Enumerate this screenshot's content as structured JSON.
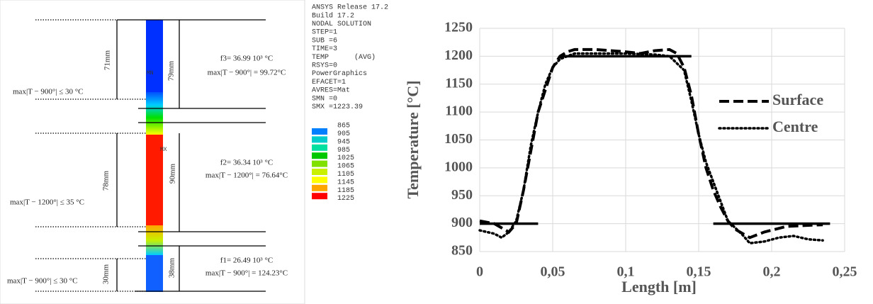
{
  "simulation": {
    "info": [
      "ANSYS Release 17.2",
      "Build 17.2",
      "NODAL SOLUTION",
      "STEP=1",
      "SUB =6",
      "TIME=3",
      "TEMP      (AVG)",
      "RSYS=0",
      "PowerGraphics",
      "EFACET=1",
      "AVRES=Mat",
      "SMN =0",
      "SMX =1223.39"
    ],
    "scale": {
      "values": [
        865,
        905,
        945,
        985,
        1025,
        1065,
        1105,
        1145,
        1185,
        1225
      ],
      "colors": [
        "#0000ff",
        "#0080ff",
        "#00cccc",
        "#00e0a0",
        "#00c800",
        "#80e000",
        "#c8f000",
        "#ffff00",
        "#ffa500",
        "#ff0000"
      ]
    },
    "zones": [
      {
        "length": "71mm",
        "section": "79mm",
        "frequency": "f3= 36.99 10³ °C",
        "deviation": "max|T − 900°| = 99.72°C",
        "limit": "max|T − 900°| ≤ 30 °C"
      },
      {
        "length": "78mm",
        "section": "90mm",
        "frequency": "f2= 36.34 10³ °C",
        "deviation": "max|T − 1200°| = 76.64°C",
        "limit": "max|T − 1200°| ≤ 35 °C"
      },
      {
        "length": "30mm",
        "section": "38mm",
        "frequency": "f1= 26.49 10³ °C",
        "deviation": "max|T − 900°| = 124.23°C",
        "limit": "max|T − 900°| ≤ 30 °C"
      }
    ],
    "markers": [
      "MN",
      "MX"
    ]
  },
  "chart_data": {
    "type": "line",
    "xlabel": "Length [m]",
    "ylabel": "Temperature [°C]",
    "xlim": [
      0,
      0.25
    ],
    "ylim": [
      850,
      1250
    ],
    "xticks": [
      0,
      {
        "value": 0.05,
        "label": "0,05"
      },
      {
        "value": 0.1,
        "label": "0,1"
      },
      {
        "value": 0.15,
        "label": "0,15"
      },
      {
        "value": 0.2,
        "label": "0,2"
      },
      {
        "value": 0.25,
        "label": "0,25"
      }
    ],
    "yticks": [
      850,
      900,
      950,
      1000,
      1050,
      1100,
      1150,
      1200,
      1250
    ],
    "grid": true,
    "legend": "right",
    "series": [
      {
        "name": "Surface",
        "color": "#000000",
        "style": "dashed",
        "x": [
          0,
          0.01,
          0.02,
          0.025,
          0.03,
          0.035,
          0.04,
          0.045,
          0.05,
          0.055,
          0.06,
          0.065,
          0.08,
          0.1,
          0.11,
          0.12,
          0.13,
          0.135,
          0.14,
          0.145,
          0.15,
          0.155,
          0.16,
          0.165,
          0.17,
          0.175,
          0.185,
          0.195,
          0.21,
          0.225,
          0.235
        ],
        "values": [
          905,
          900,
          885,
          900,
          960,
          1030,
          1100,
          1140,
          1180,
          1200,
          1208,
          1212,
          1212,
          1208,
          1205,
          1210,
          1212,
          1205,
          1180,
          1130,
          1060,
          1000,
          960,
          930,
          905,
          890,
          875,
          885,
          895,
          897,
          898
        ]
      },
      {
        "name": "Centre",
        "color": "#000000",
        "style": "dotted",
        "x": [
          0,
          0.01,
          0.015,
          0.02,
          0.025,
          0.03,
          0.035,
          0.04,
          0.045,
          0.05,
          0.055,
          0.065,
          0.1,
          0.12,
          0.13,
          0.14,
          0.145,
          0.15,
          0.155,
          0.16,
          0.165,
          0.17,
          0.18,
          0.185,
          0.195,
          0.205,
          0.215,
          0.225,
          0.235
        ],
        "values": [
          888,
          882,
          875,
          885,
          905,
          960,
          1040,
          1100,
          1150,
          1180,
          1195,
          1205,
          1205,
          1203,
          1200,
          1175,
          1120,
          1060,
          1010,
          975,
          940,
          905,
          880,
          865,
          868,
          875,
          878,
          872,
          870
        ]
      },
      {
        "color": "#000000",
        "style": "solid",
        "x": [
          0,
          0.04,
          0.047,
          0.055,
          0.145,
          0.152,
          0.16,
          0.24
        ],
        "values": [
          900,
          900,
          null,
          1200,
          1200,
          null,
          900,
          900
        ]
      }
    ]
  }
}
